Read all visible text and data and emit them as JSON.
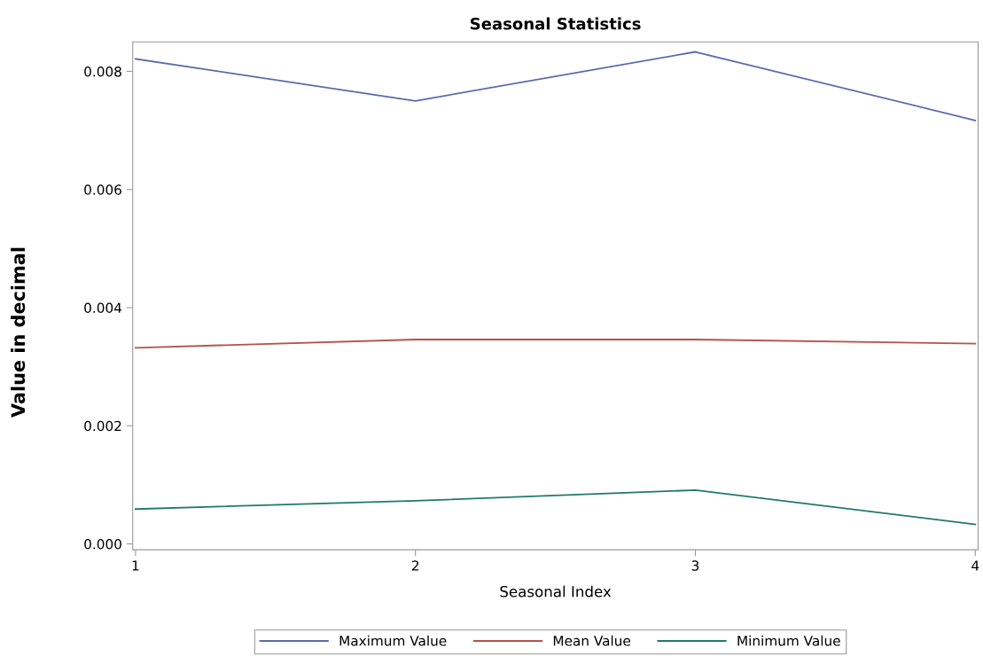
{
  "chart_data": {
    "type": "line",
    "title": "Seasonal Statistics",
    "xlabel": "Seasonal Index",
    "ylabel": "Value in decimal",
    "x": [
      1,
      2,
      3,
      4
    ],
    "series": [
      {
        "name": "Maximum Value",
        "color": "#5a6aad",
        "values": [
          0.00821,
          0.0075,
          0.00833,
          0.00717
        ]
      },
      {
        "name": "Mean Value",
        "color": "#b5524c",
        "values": [
          0.00332,
          0.00346,
          0.00346,
          0.00339
        ]
      },
      {
        "name": "Minimum Value",
        "color": "#1f7a6a",
        "values": [
          0.00059,
          0.00073,
          0.00091,
          0.00033
        ]
      }
    ],
    "xlim": [
      0.99,
      4.01
    ],
    "xticks": [
      1,
      2,
      3,
      4
    ],
    "ylim": [
      -0.0001,
      0.0085
    ],
    "yticks": [
      {
        "value": 0,
        "label": "0.000"
      },
      {
        "value": 0.002,
        "label": "0.002"
      },
      {
        "value": 0.004,
        "label": "0.004"
      },
      {
        "value": 0.006,
        "label": "0.006"
      },
      {
        "value": 0.008,
        "label": "0.008"
      }
    ],
    "grid": false,
    "legend": "bottom",
    "marker": "none",
    "line_style": "solid"
  }
}
